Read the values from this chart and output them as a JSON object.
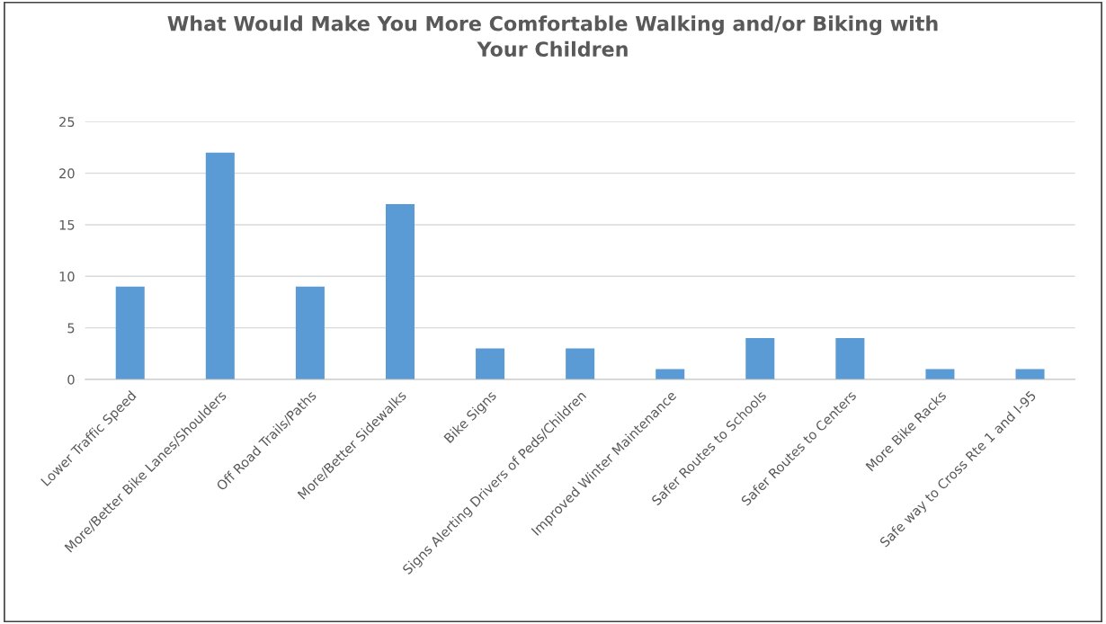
{
  "chart_data": {
    "type": "bar",
    "title": "What Would Make You More Comfortable Walking and/or Biking with\nYour Children",
    "categories": [
      "Lower Traffic Speed",
      "More/Better Bike Lanes/Shoulders",
      "Off Road Trails/Paths",
      "More/Better Sidewalks",
      "Bike Signs",
      "Signs Alerting Drivers of Peds/Children",
      "Improved Winter Maintenance",
      "Safer Routes to Schools",
      "Safer Routes to Centers",
      "More Bike Racks",
      "Safe way to Cross Rte 1 and I-95"
    ],
    "values": [
      9,
      22,
      9,
      17,
      3,
      3,
      1,
      4,
      4,
      1,
      1
    ],
    "color": "#5b9bd5",
    "ylim": [
      0,
      25
    ],
    "yticks": [
      0,
      5,
      10,
      15,
      20,
      25
    ],
    "grid": "y"
  }
}
